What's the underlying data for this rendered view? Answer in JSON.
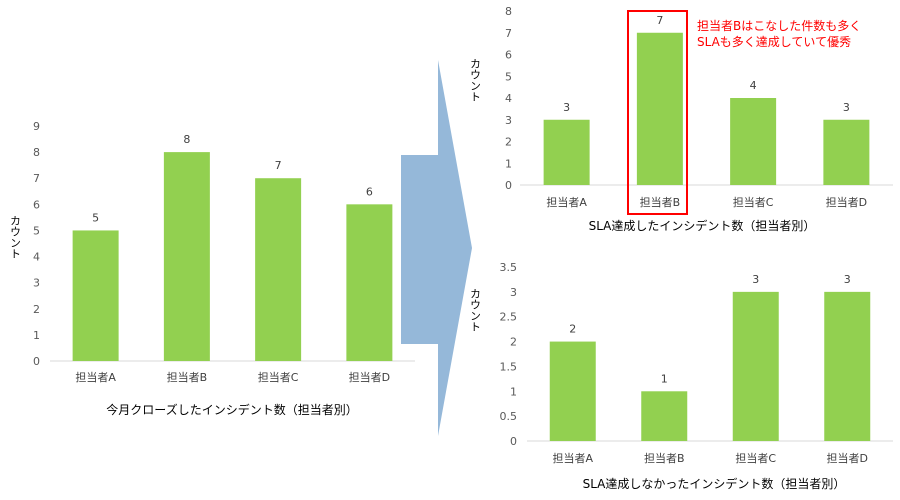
{
  "colors": {
    "bar": "#92d050",
    "axis": "#d9d9d9",
    "tick": "#595959",
    "label": "#404040",
    "arrow": "#95b8d9",
    "highlight": "#ff0000"
  },
  "chart_data": [
    {
      "type": "bar",
      "title": "今月クローズしたインシデント数（担当者別）",
      "ylabel": "カウント",
      "categories": [
        "担当者A",
        "担当者B",
        "担当者C",
        "担当者D"
      ],
      "values": [
        5,
        8,
        7,
        6
      ],
      "ylim": [
        0,
        9
      ],
      "yticks": [
        "0",
        "1",
        "2",
        "3",
        "4",
        "5",
        "6",
        "7",
        "8",
        "9"
      ],
      "grid": false
    },
    {
      "type": "bar",
      "title": "SLA達成したインシデント数（担当者別）",
      "ylabel": "カウント",
      "categories": [
        "担当者A",
        "担当者B",
        "担当者C",
        "担当者D"
      ],
      "values": [
        3,
        7,
        4,
        3
      ],
      "ylim": [
        0,
        8
      ],
      "yticks": [
        "0",
        "1",
        "2",
        "3",
        "4",
        "5",
        "6",
        "7",
        "8"
      ],
      "grid": false,
      "highlight_category": "担当者B"
    },
    {
      "type": "bar",
      "title": "SLA達成しなかったインシデント数（担当者別）",
      "ylabel": "カウント",
      "categories": [
        "担当者A",
        "担当者B",
        "担当者C",
        "担当者D"
      ],
      "values": [
        2,
        1,
        3,
        3
      ],
      "ylim": [
        0,
        3.5
      ],
      "yticks": [
        "0",
        "0.5",
        "1",
        "1.5",
        "2",
        "2.5",
        "3",
        "3.5"
      ],
      "grid": false
    }
  ],
  "annotation": {
    "lines": [
      "担当者Bはこなした件数も多く",
      "SLAも多く達成していて優秀"
    ]
  }
}
